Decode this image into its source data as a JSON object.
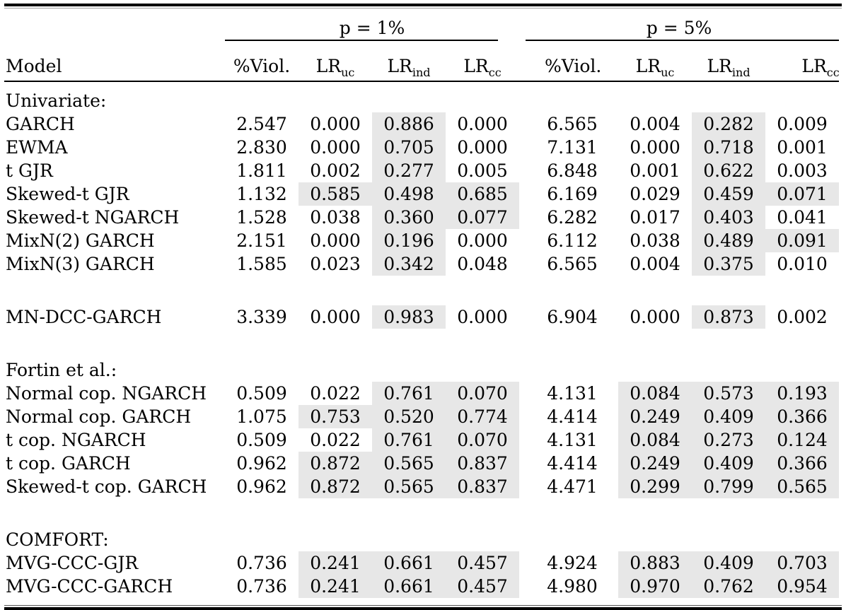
{
  "table": {
    "highlight_color": "#e7e7e7",
    "groups": {
      "p1": {
        "label": "p = 1%"
      },
      "p5": {
        "label": "p = 5%"
      }
    },
    "headers": {
      "model": "Model",
      "viol": "%Viol.",
      "lr": "LR",
      "uc": "uc",
      "ind": "ind",
      "cc": "cc"
    },
    "rows": [
      {
        "type": "section",
        "label": "Univariate:"
      },
      {
        "type": "data",
        "model": "GARCH",
        "values": [
          "2.547",
          "0.000",
          "0.886",
          "0.000",
          "6.565",
          "0.004",
          "0.282",
          "0.009"
        ],
        "shaded": [
          0,
          0,
          1,
          0,
          0,
          0,
          1,
          0
        ]
      },
      {
        "type": "data",
        "model": "EWMA",
        "values": [
          "2.830",
          "0.000",
          "0.705",
          "0.000",
          "7.131",
          "0.000",
          "0.718",
          "0.001"
        ],
        "shaded": [
          0,
          0,
          1,
          0,
          0,
          0,
          1,
          0
        ]
      },
      {
        "type": "data",
        "model": "t GJR",
        "values": [
          "1.811",
          "0.002",
          "0.277",
          "0.005",
          "6.848",
          "0.001",
          "0.622",
          "0.003"
        ],
        "shaded": [
          0,
          0,
          1,
          0,
          0,
          0,
          1,
          0
        ]
      },
      {
        "type": "data",
        "model": "Skewed-t GJR",
        "values": [
          "1.132",
          "0.585",
          "0.498",
          "0.685",
          "6.169",
          "0.029",
          "0.459",
          "0.071"
        ],
        "shaded": [
          0,
          1,
          1,
          1,
          0,
          0,
          1,
          1
        ]
      },
      {
        "type": "data",
        "model": "Skewed-t NGARCH",
        "values": [
          "1.528",
          "0.038",
          "0.360",
          "0.077",
          "6.282",
          "0.017",
          "0.403",
          "0.041"
        ],
        "shaded": [
          0,
          0,
          1,
          1,
          0,
          0,
          1,
          0
        ]
      },
      {
        "type": "data",
        "model": "MixN(2) GARCH",
        "values": [
          "2.151",
          "0.000",
          "0.196",
          "0.000",
          "6.112",
          "0.038",
          "0.489",
          "0.091"
        ],
        "shaded": [
          0,
          0,
          1,
          0,
          0,
          0,
          1,
          1
        ]
      },
      {
        "type": "data",
        "model": "MixN(3) GARCH",
        "values": [
          "1.585",
          "0.023",
          "0.342",
          "0.048",
          "6.565",
          "0.004",
          "0.375",
          "0.010"
        ],
        "shaded": [
          0,
          0,
          1,
          0,
          0,
          0,
          1,
          0
        ]
      },
      {
        "type": "spacer"
      },
      {
        "type": "data",
        "model": "MN-DCC-GARCH",
        "values": [
          "3.339",
          "0.000",
          "0.983",
          "0.000",
          "6.904",
          "0.000",
          "0.873",
          "0.002"
        ],
        "shaded": [
          0,
          0,
          1,
          0,
          0,
          0,
          1,
          0
        ]
      },
      {
        "type": "spacer"
      },
      {
        "type": "section",
        "label": "Fortin et al.:"
      },
      {
        "type": "data",
        "model": "Normal cop. NGARCH",
        "values": [
          "0.509",
          "0.022",
          "0.761",
          "0.070",
          "4.131",
          "0.084",
          "0.573",
          "0.193"
        ],
        "shaded": [
          0,
          0,
          1,
          1,
          0,
          1,
          1,
          1
        ]
      },
      {
        "type": "data",
        "model": "Normal cop. GARCH",
        "values": [
          "1.075",
          "0.753",
          "0.520",
          "0.774",
          "4.414",
          "0.249",
          "0.409",
          "0.366"
        ],
        "shaded": [
          0,
          1,
          1,
          1,
          0,
          1,
          1,
          1
        ]
      },
      {
        "type": "data",
        "model": "t cop. NGARCH",
        "values": [
          "0.509",
          "0.022",
          "0.761",
          "0.070",
          "4.131",
          "0.084",
          "0.273",
          "0.124"
        ],
        "shaded": [
          0,
          0,
          1,
          1,
          0,
          1,
          1,
          1
        ]
      },
      {
        "type": "data",
        "model": "t cop. GARCH",
        "values": [
          "0.962",
          "0.872",
          "0.565",
          "0.837",
          "4.414",
          "0.249",
          "0.409",
          "0.366"
        ],
        "shaded": [
          0,
          1,
          1,
          1,
          0,
          1,
          1,
          1
        ]
      },
      {
        "type": "data",
        "model": "Skewed-t cop. GARCH",
        "values": [
          "0.962",
          "0.872",
          "0.565",
          "0.837",
          "4.471",
          "0.299",
          "0.799",
          "0.565"
        ],
        "shaded": [
          0,
          1,
          1,
          1,
          0,
          1,
          1,
          1
        ]
      },
      {
        "type": "spacer"
      },
      {
        "type": "section",
        "label": "COMFORT:"
      },
      {
        "type": "data",
        "model": "MVG-CCC-GJR",
        "values": [
          "0.736",
          "0.241",
          "0.661",
          "0.457",
          "4.924",
          "0.883",
          "0.409",
          "0.703"
        ],
        "shaded": [
          0,
          1,
          1,
          1,
          0,
          1,
          1,
          1
        ]
      },
      {
        "type": "data",
        "model": "MVG-CCC-GARCH",
        "values": [
          "0.736",
          "0.241",
          "0.661",
          "0.457",
          "4.980",
          "0.970",
          "0.762",
          "0.954"
        ],
        "shaded": [
          0,
          1,
          1,
          1,
          0,
          1,
          1,
          1
        ]
      }
    ]
  }
}
